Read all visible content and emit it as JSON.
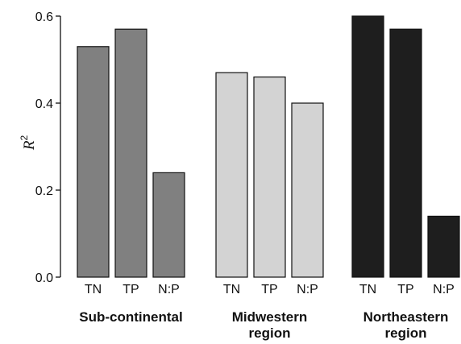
{
  "chart_data": {
    "type": "bar",
    "ylabel": "R",
    "ylabel_superscript": "2",
    "ylim": [
      0,
      0.6
    ],
    "yticks": [
      "0.0",
      "0.2",
      "0.4",
      "0.6"
    ],
    "grid": false,
    "groups": [
      {
        "label_lines": [
          "Sub-continental"
        ],
        "color": "#808080",
        "categories": [
          "TN",
          "TP",
          "N:P"
        ],
        "values": [
          0.53,
          0.57,
          0.24
        ]
      },
      {
        "label_lines": [
          "Midwestern",
          "region"
        ],
        "color": "#d3d3d3",
        "categories": [
          "TN",
          "TP",
          "N:P"
        ],
        "values": [
          0.47,
          0.46,
          0.4
        ]
      },
      {
        "label_lines": [
          "Northeastern",
          "region"
        ],
        "color": "#1e1e1e",
        "categories": [
          "TN",
          "TP",
          "N:P"
        ],
        "values": [
          0.6,
          0.57,
          0.14
        ]
      }
    ]
  }
}
